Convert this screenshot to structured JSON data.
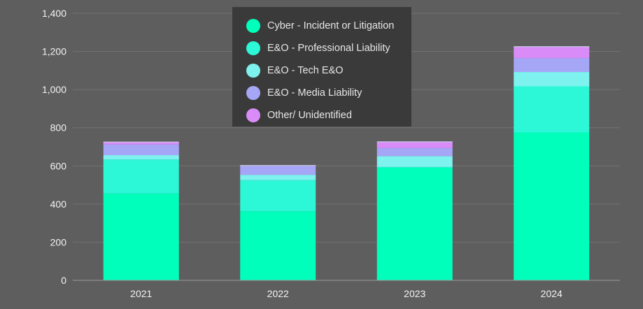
{
  "chart_data": {
    "type": "bar",
    "stacked": true,
    "title": "",
    "xlabel": "",
    "ylabel": "",
    "ylim": [
      0,
      1400
    ],
    "yticks": [
      0,
      200,
      400,
      600,
      800,
      1000,
      1200,
      1400
    ],
    "ytick_labels": [
      "0",
      "200",
      "400",
      "600",
      "800",
      "1,000",
      "1,200",
      "1,400"
    ],
    "categories": [
      "2021",
      "2022",
      "2023",
      "2024"
    ],
    "grid": true,
    "legend_position": "top-center",
    "series": [
      {
        "name": "Cyber - Incident or Litigation",
        "color": "#00ffbb",
        "values": [
          455,
          362,
          592,
          775
        ]
      },
      {
        "name": "E&O - Professional Liability",
        "color": "#2cf7d6",
        "values": [
          178,
          163,
          2,
          242
        ]
      },
      {
        "name": "E&O - Tech E&O",
        "color": "#7df2ef",
        "values": [
          23,
          28,
          57,
          75
        ]
      },
      {
        "name": "E&O - Media Liability",
        "color": "#a6a6f7",
        "values": [
          56,
          47,
          43,
          73
        ]
      },
      {
        "name": "Other/ Unidentified",
        "color": "#d98cf7",
        "values": [
          13,
          2,
          32,
          60
        ]
      }
    ]
  }
}
